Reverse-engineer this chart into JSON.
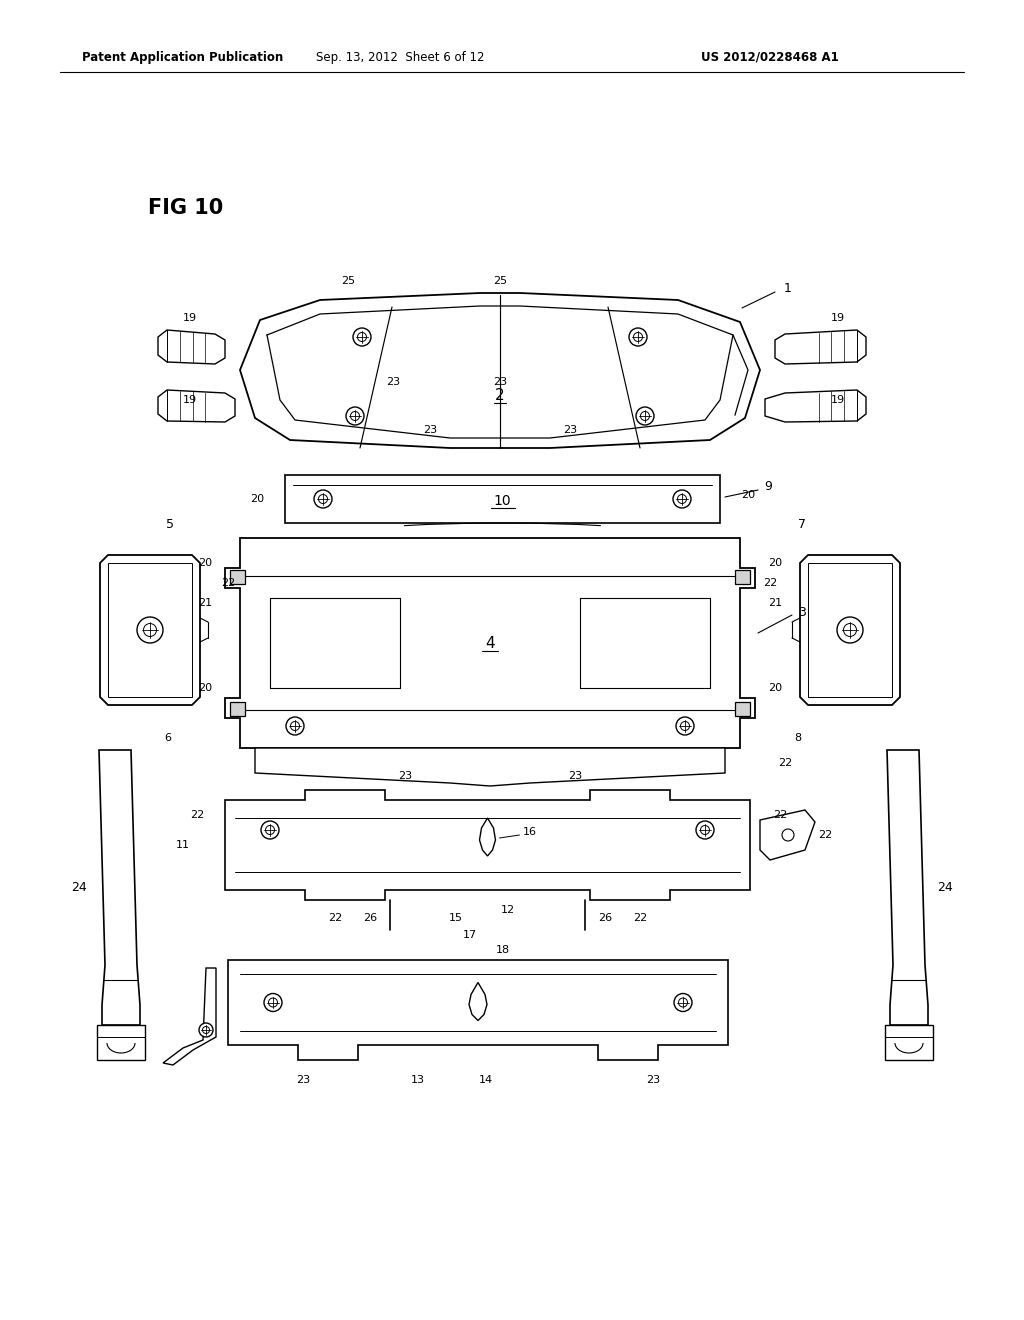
{
  "header_left": "Patent Application Publication",
  "header_mid": "Sep. 13, 2012  Sheet 6 of 12",
  "header_right": "US 2012/0228468 A1",
  "fig_label": "FIG 10",
  "bg": "#ffffff",
  "lc": "#000000"
}
